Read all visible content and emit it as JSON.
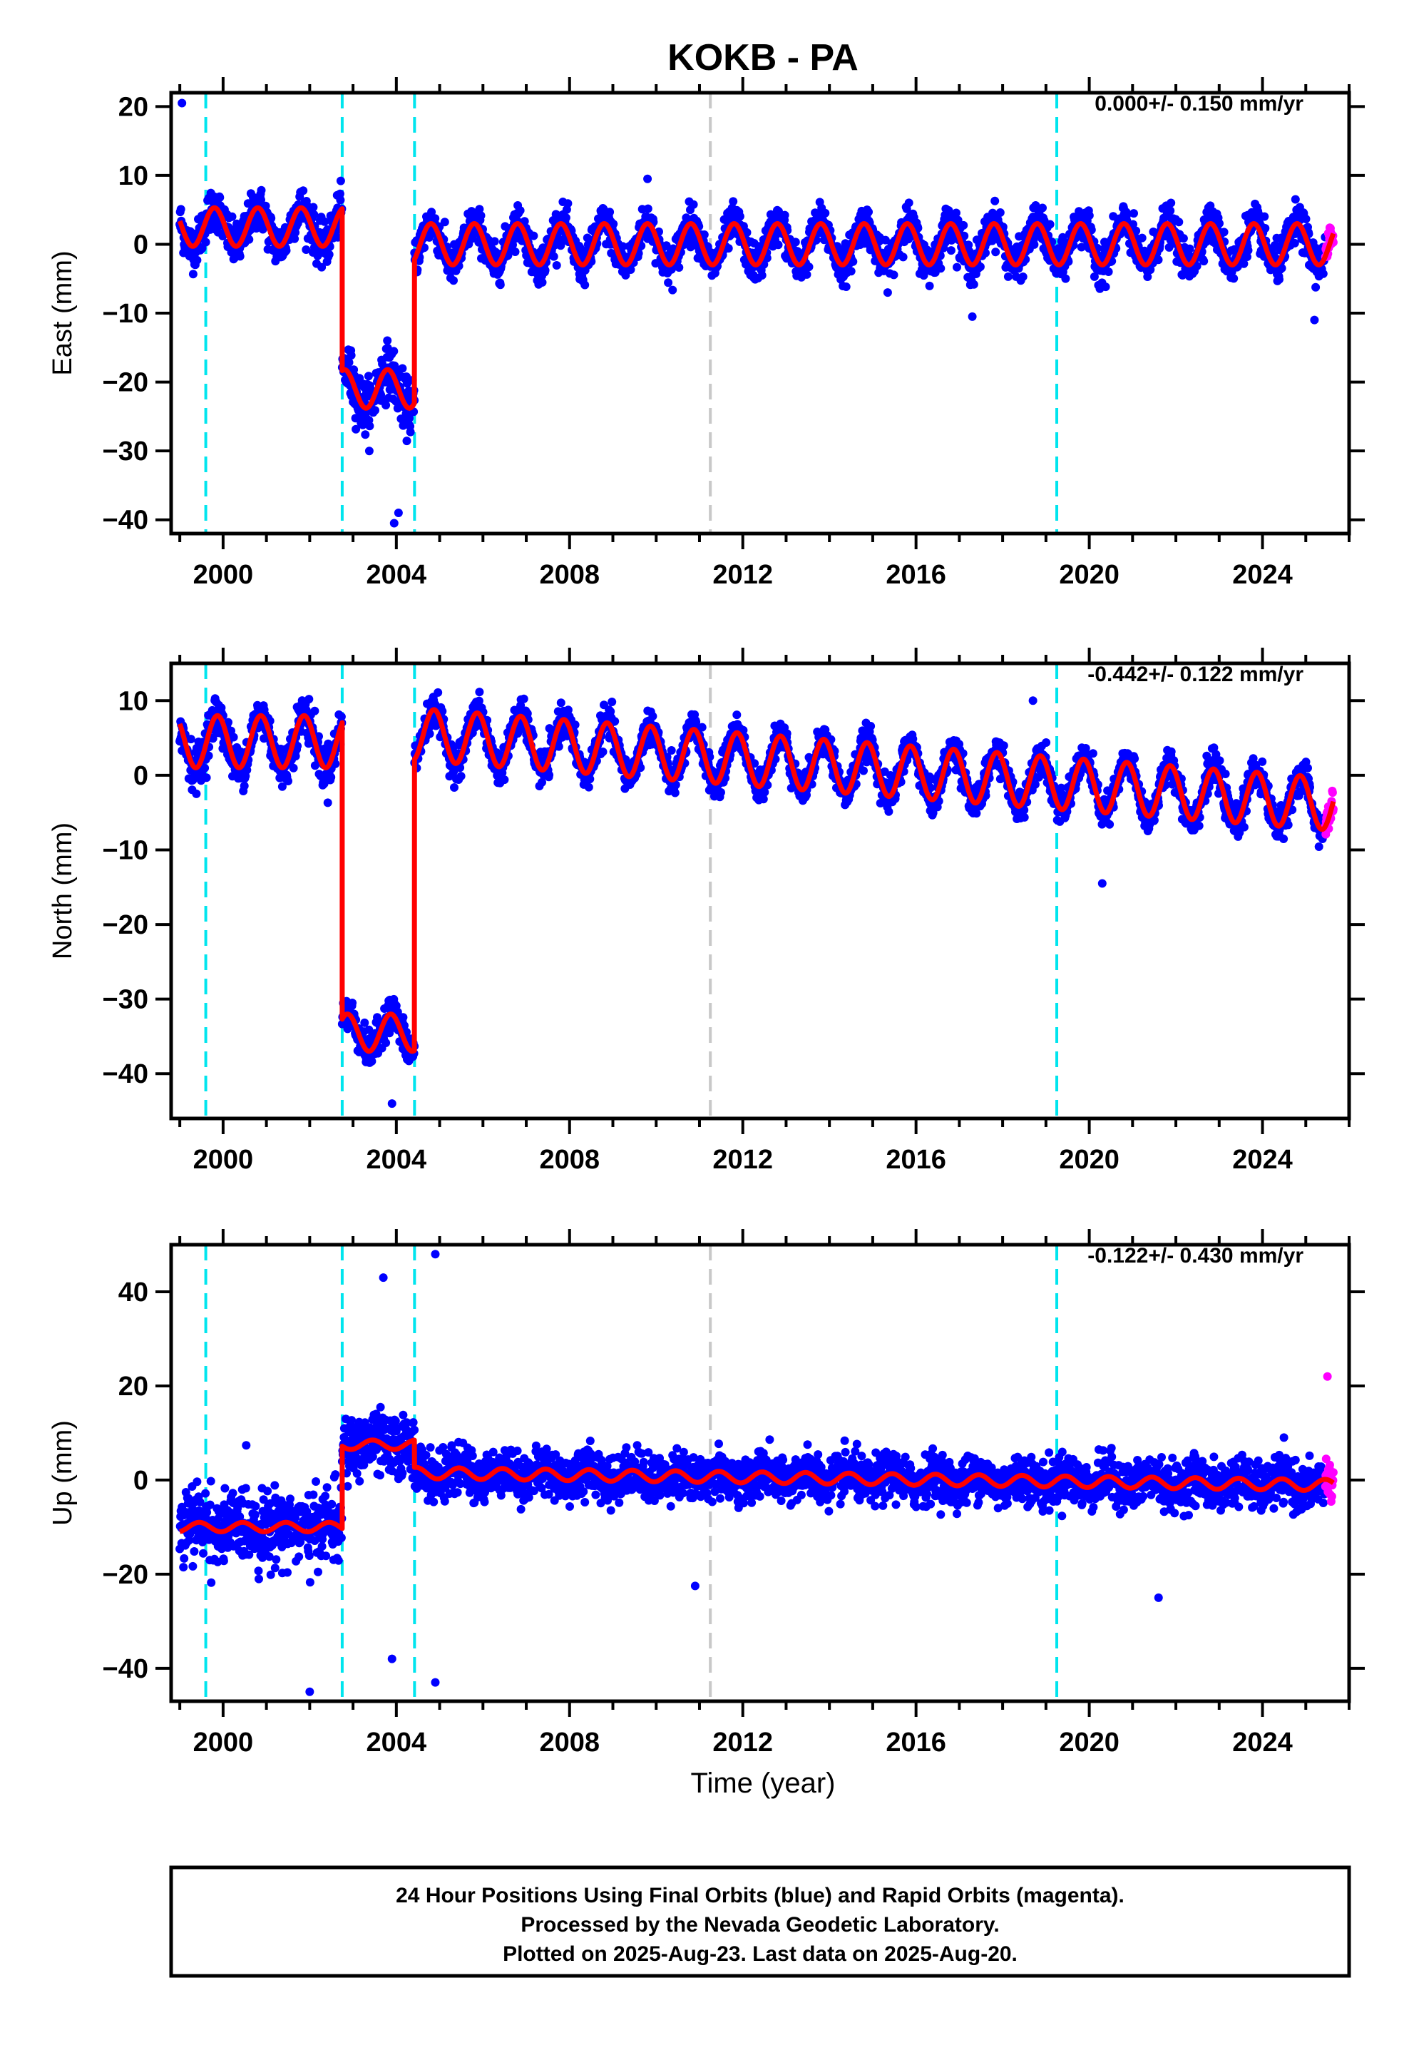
{
  "title": "KOKB - PA",
  "footer": {
    "line1": "24 Hour Positions Using Final Orbits (blue) and Rapid Orbits (magenta).",
    "line2": "Processed by the Nevada Geodetic Laboratory.",
    "line3": "Plotted on 2025-Aug-23. Last data on 2025-Aug-20."
  },
  "x_axis_label": "Time (year)",
  "x_ticks": [
    "2000",
    "2004",
    "2008",
    "2012",
    "2016",
    "2020",
    "2024"
  ],
  "colors": {
    "final_points": "#0000ff",
    "rapid_points": "#ff00ff",
    "model": "#ff0000",
    "event_cyan": "#00e5ee",
    "event_gray": "#c8c8c8",
    "frame": "#000000"
  },
  "chart_data": [
    {
      "type": "scatter",
      "component": "east",
      "ylabel": "East (mm)",
      "rate": "0.000+/- 0.150 mm/yr",
      "xlim": [
        1998.8,
        2026.0
      ],
      "ylim": [
        -42,
        22
      ],
      "yticks": [
        20,
        10,
        0,
        -10,
        -20,
        -30,
        -40
      ],
      "xticks": [
        2000,
        2004,
        2008,
        2012,
        2016,
        2020,
        2024
      ],
      "event_lines_cyan": [
        1999.6,
        2002.75,
        2004.42,
        2019.25
      ],
      "event_lines_gray": [
        2011.25
      ],
      "rapid_from": 2025.45,
      "segments": [
        {
          "from": 1999.0,
          "to": 2002.75,
          "offset": 2.5,
          "annual_amp": 2.8,
          "phase": 0.55,
          "scatter": 2.8
        },
        {
          "from": 2002.75,
          "to": 2004.42,
          "offset": -21.0,
          "annual_amp": 2.8,
          "phase": 0.55,
          "scatter": 3.5
        },
        {
          "from": 2004.42,
          "to": 2025.64,
          "offset": 0.0,
          "annual_amp": 3.0,
          "phase": 0.55,
          "scatter": 2.5
        }
      ],
      "outliers": [
        [
          1999.05,
          20.5
        ],
        [
          2003.95,
          -40.5
        ],
        [
          2004.05,
          -39.0
        ],
        [
          2009.8,
          9.5
        ],
        [
          2017.3,
          -10.5
        ],
        [
          2025.2,
          -11.0
        ]
      ]
    },
    {
      "type": "scatter",
      "component": "north",
      "ylabel": "North (mm)",
      "rate": "-0.442+/- 0.122 mm/yr",
      "xlim": [
        1998.8,
        2026.0
      ],
      "ylim": [
        -46,
        15
      ],
      "yticks": [
        10,
        0,
        -10,
        -20,
        -30,
        -40
      ],
      "xticks": [
        2000,
        2004,
        2008,
        2012,
        2016,
        2020,
        2024
      ],
      "event_lines_cyan": [
        1999.6,
        2002.75,
        2004.42,
        2019.25
      ],
      "event_lines_gray": [
        2011.25
      ],
      "rapid_from": 2025.45,
      "segments": [
        {
          "from": 1999.0,
          "to": 2002.75,
          "offset": 4.5,
          "annual_amp": 3.5,
          "phase": 0.62,
          "scatter": 2.6
        },
        {
          "from": 2002.75,
          "to": 2004.42,
          "offset": -34.5,
          "annual_amp": 2.5,
          "phase": 0.62,
          "scatter": 2.2
        },
        {
          "from": 2004.42,
          "to": 2025.64,
          "offset": 5.5,
          "trend": -0.442,
          "trend_ref": 2004.42,
          "annual_amp": 3.5,
          "phase": 0.62,
          "scatter": 2.0
        }
      ],
      "outliers": [
        [
          2018.7,
          10.0
        ],
        [
          2020.3,
          -14.5
        ],
        [
          2003.9,
          -44.0
        ]
      ]
    },
    {
      "type": "scatter",
      "component": "up",
      "ylabel": "Up (mm)",
      "rate": "-0.122+/- 0.430 mm/yr",
      "xlim": [
        1998.8,
        2026.0
      ],
      "ylim": [
        -47,
        50
      ],
      "yticks": [
        40,
        20,
        0,
        -20,
        -40
      ],
      "xticks": [
        2000,
        2004,
        2008,
        2012,
        2016,
        2020,
        2024
      ],
      "event_lines_cyan": [
        1999.6,
        2002.75,
        2004.42,
        2019.25
      ],
      "event_lines_gray": [
        2011.25
      ],
      "rapid_from": 2025.45,
      "segments": [
        {
          "from": 1999.0,
          "to": 2002.75,
          "offset": -10.0,
          "annual_amp": 1.0,
          "phase": 0.2,
          "scatter": 7.0
        },
        {
          "from": 2002.75,
          "to": 2004.42,
          "offset": 7.5,
          "annual_amp": 1.0,
          "phase": 0.2,
          "scatter": 6.0
        },
        {
          "from": 2004.42,
          "to": 2025.64,
          "offset": 1.5,
          "trend": -0.122,
          "trend_ref": 2004.42,
          "annual_amp": 1.2,
          "phase": 0.2,
          "scatter": 4.5
        }
      ],
      "outliers": [
        [
          2004.9,
          48.0
        ],
        [
          2003.7,
          43.0
        ],
        [
          2004.9,
          -43.0
        ],
        [
          2002.0,
          -45.0
        ],
        [
          2003.9,
          -38.0
        ],
        [
          2021.6,
          -25.0
        ],
        [
          2010.9,
          -22.5
        ],
        [
          2025.5,
          22.0
        ]
      ]
    }
  ]
}
